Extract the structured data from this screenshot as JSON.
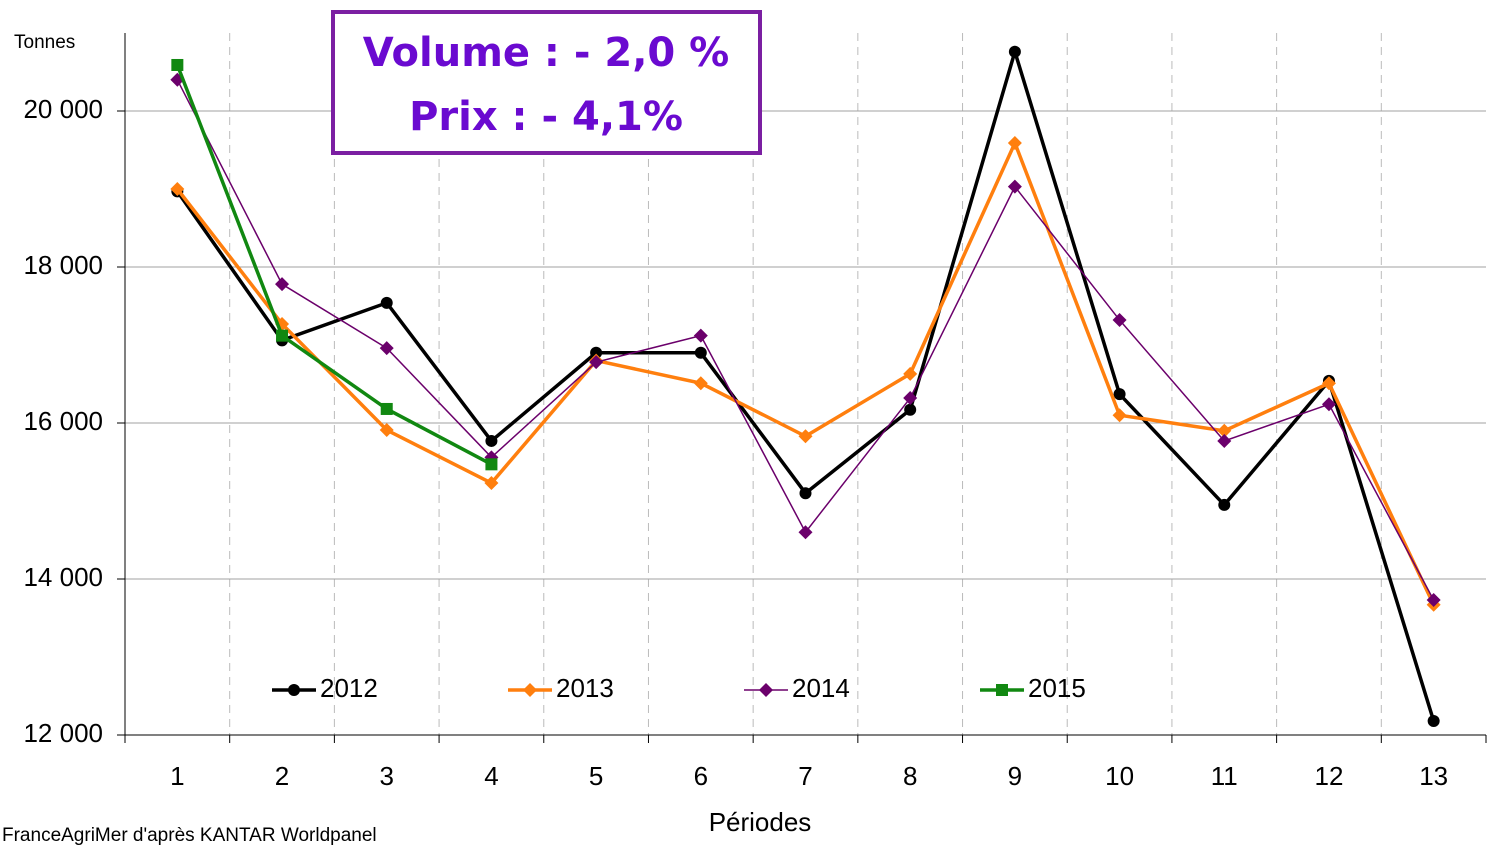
{
  "chart_data": {
    "type": "line",
    "y_label": "Tonnes",
    "x_label": "Périodes",
    "source": "FranceAgriMer d'après KANTAR Worldpanel",
    "annotations": [
      "Volume : - 2,0 %",
      "Prix : - 4,1%"
    ],
    "categories": [
      "1",
      "2",
      "3",
      "4",
      "5",
      "6",
      "7",
      "8",
      "9",
      "10",
      "11",
      "12",
      "13"
    ],
    "series": [
      {
        "name": "2012",
        "color": "#000000",
        "marker": "circle",
        "values": [
          18970,
          17060,
          17540,
          15770,
          16900,
          16900,
          15100,
          16170,
          20760,
          16370,
          14950,
          16540,
          12180
        ]
      },
      {
        "name": "2013",
        "color": "#ff7f0e",
        "marker": "diamond",
        "values": [
          19000,
          17270,
          15910,
          15230,
          16800,
          16510,
          15830,
          16630,
          19590,
          16100,
          15900,
          16510,
          13670
        ]
      },
      {
        "name": "2014",
        "color": "#6b006b",
        "marker": "diamond",
        "values": [
          20400,
          17780,
          16960,
          15560,
          16780,
          17120,
          14600,
          16320,
          19030,
          17320,
          15770,
          16240,
          13730
        ]
      },
      {
        "name": "2015",
        "color": "#118811",
        "marker": "square",
        "values": [
          20590,
          17120,
          16180,
          15470,
          null,
          null,
          null,
          null,
          null,
          null,
          null,
          null,
          null
        ]
      }
    ],
    "ylim": [
      12000,
      21000
    ],
    "yticks": [
      {
        "value": 12000,
        "label": "12 000"
      },
      {
        "value": 14000,
        "label": "14 000"
      },
      {
        "value": 16000,
        "label": "16 000"
      },
      {
        "value": 18000,
        "label": "18 000"
      },
      {
        "value": 20000,
        "label": "20 000"
      }
    ],
    "grid": true,
    "legend": "bottom"
  }
}
